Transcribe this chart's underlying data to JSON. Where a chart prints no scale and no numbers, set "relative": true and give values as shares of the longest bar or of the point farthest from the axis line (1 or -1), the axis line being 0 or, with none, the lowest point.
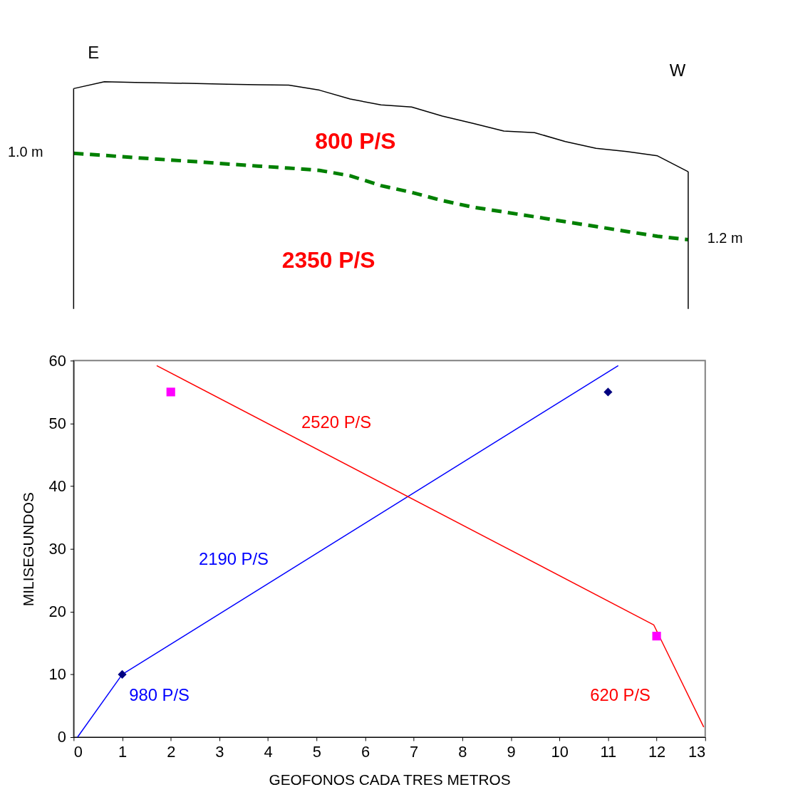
{
  "chart_data": [
    {
      "type": "line",
      "relative": true,
      "categories": [
        null,
        null,
        null,
        null,
        null,
        null,
        null,
        null,
        null,
        null,
        null,
        null,
        null,
        null,
        null,
        null,
        null,
        null,
        null,
        null,
        null
      ],
      "series": [
        {
          "color": "#000000",
          "line_style": "solid",
          "values": [
            0.97,
            1,
            0.997,
            0.995,
            0.992,
            0.989,
            0.987,
            0.985,
            0.963,
            0.924,
            0.898,
            0.889,
            0.849,
            0.817,
            0.783,
            0.776,
            0.737,
            0.707,
            0.693,
            0.674,
            0.604
          ]
        },
        {
          "color": "#008000",
          "line_style": "dashed",
          "values": [
            0.685,
            0.676,
            0.666,
            0.657,
            0.648,
            0.638,
            0.629,
            0.62,
            0.61,
            0.586,
            0.543,
            0.513,
            0.477,
            0.448,
            0.427,
            0.406,
            0.384,
            0.363,
            0.341,
            0.32,
            0.305
          ]
        }
      ],
      "annotations": [
        "E",
        "W",
        "1.0 m",
        "1.2 m",
        "800 P/S",
        "2350 P/S"
      ]
    },
    {
      "type": "line",
      "xlabel": "GEOFONOS CADA TRES METROS",
      "ylabel": "MILISEGUNDOS",
      "xlim": [
        0,
        13
      ],
      "xticks": [
        0,
        1,
        2,
        3,
        4,
        5,
        6,
        7,
        8,
        9,
        10,
        11,
        12,
        13
      ],
      "ylim": [
        0,
        60
      ],
      "yticks": [
        0,
        10,
        20,
        30,
        40,
        50,
        60
      ],
      "grid": false,
      "series": [
        {
          "type": "line",
          "color": "#0000ff",
          "x": [
            0.08,
            1,
            11.21
          ],
          "values": [
            0,
            10,
            59.2
          ]
        },
        {
          "type": "line",
          "color": "#ff0000",
          "x": [
            1.71,
            11.94,
            12.97
          ],
          "values": [
            59.2,
            17.9,
            1.6
          ]
        },
        {
          "type": "scatter",
          "color": "#000080",
          "marker": "diamond",
          "x": [
            1,
            11
          ],
          "values": [
            10,
            55
          ]
        },
        {
          "type": "scatter",
          "color": "#ff00ff",
          "marker": "square",
          "x": [
            2,
            12
          ],
          "values": [
            55,
            16.1
          ]
        }
      ],
      "annotations": [
        "2520 P/S",
        "2190 P/S",
        "980 P/S",
        "620 P/S"
      ]
    }
  ]
}
